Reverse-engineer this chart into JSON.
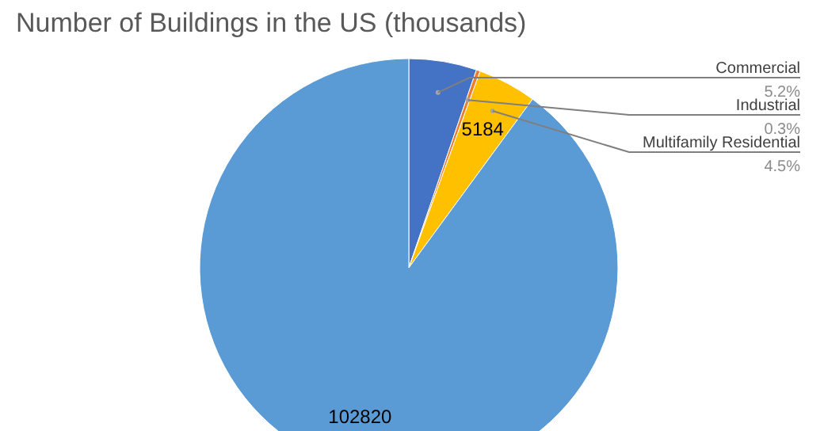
{
  "chart_data": {
    "type": "pie",
    "title": "Number of Buildings in the US (thousands)",
    "categories": [
      "Commercial",
      "Industrial",
      "Multifamily Residential",
      null
    ],
    "values": [
      5990,
      346,
      5184,
      102820
    ],
    "colors": [
      "#4472c4",
      "#ed7d31",
      "#ffc000",
      "#5b9bd5"
    ],
    "value_labels": [
      null,
      null,
      "5184",
      "102820"
    ],
    "annotations": [
      "5.2%",
      "0.3%",
      "4.5%"
    ]
  }
}
